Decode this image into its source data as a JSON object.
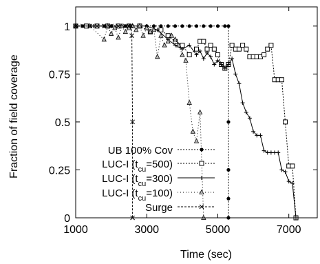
{
  "chart_data": {
    "type": "line",
    "xlabel": "Time (sec)",
    "ylabel": "Fraction of field coverage",
    "xlim": [
      1000,
      7800
    ],
    "ylim": [
      0,
      1.1
    ],
    "x_ticks": [
      1000,
      3000,
      5000,
      7000
    ],
    "y_ticks": [
      0,
      0.25,
      0.5,
      0.75,
      1
    ],
    "x_tick_labels": [
      "1000",
      "3000",
      "5000",
      "7000"
    ],
    "y_tick_labels": [
      "0",
      "0.25",
      "0.5",
      "0.75",
      "1"
    ],
    "legend_position": "center-left, inside plot",
    "series": [
      {
        "name": "UB 100% Cov",
        "color": "#000000",
        "dash": "2,2",
        "marker": "dot",
        "x": [
          1000,
          1200,
          1400,
          1600,
          1800,
          2000,
          2200,
          2400,
          2600,
          2800,
          3000,
          3200,
          3400,
          3600,
          3800,
          4000,
          4200,
          4400,
          4600,
          4800,
          5000,
          5200,
          5300,
          5300,
          5300,
          5300,
          5300
        ],
        "y": [
          1,
          1,
          1,
          1,
          1,
          1,
          1,
          1,
          1,
          1,
          1,
          1,
          1,
          1,
          1,
          1,
          1,
          1,
          1,
          1,
          1,
          1,
          1,
          0.5,
          0.25,
          0.1,
          0
        ]
      },
      {
        "name": "LUC-I (t_cu=500)",
        "color": "#000000",
        "dash": "2,2",
        "marker": "square",
        "x": [
          1000,
          1300,
          1600,
          1900,
          2200,
          2500,
          2800,
          3100,
          3400,
          3600,
          3800,
          4000,
          4200,
          4400,
          4500,
          4600,
          4700,
          4800,
          4900,
          5000,
          5100,
          5200,
          5300,
          5400,
          5500,
          5600,
          5700,
          5800,
          5900,
          6000,
          6100,
          6200,
          6300,
          6400,
          6500,
          6600,
          6700,
          6800,
          6900,
          7000,
          7100,
          7200
        ],
        "y": [
          1,
          1,
          1,
          1,
          1,
          1,
          1,
          0.97,
          0.98,
          0.95,
          0.92,
          0.9,
          0.85,
          0.88,
          0.92,
          0.92,
          0.88,
          0.9,
          0.88,
          0.85,
          0.8,
          0.78,
          0.8,
          0.9,
          0.88,
          0.88,
          0.9,
          0.88,
          0.84,
          0.84,
          0.84,
          0.84,
          0.85,
          0.88,
          0.9,
          0.72,
          0.72,
          0.72,
          0.5,
          0.27,
          0.27,
          0
        ]
      },
      {
        "name": "LUC-I (t_cu=300)",
        "color": "#000000",
        "dash": "",
        "marker": "plus",
        "x": [
          1000,
          1500,
          2000,
          2500,
          3000,
          3300,
          3600,
          3800,
          4000,
          4200,
          4400,
          4500,
          4600,
          4700,
          4800,
          4900,
          5000,
          5100,
          5200,
          5300,
          5400,
          5500,
          5600,
          5700,
          5800,
          5900,
          6000,
          6100,
          6200,
          6300,
          6400,
          6500,
          6600,
          6700,
          6800,
          6900,
          7000,
          7100,
          7200
        ],
        "y": [
          1,
          1,
          1,
          1,
          1,
          0.98,
          0.93,
          0.9,
          0.88,
          0.9,
          0.85,
          0.87,
          0.83,
          0.86,
          0.84,
          0.8,
          0.82,
          0.8,
          0.78,
          0.8,
          0.83,
          0.75,
          0.7,
          0.6,
          0.55,
          0.52,
          0.45,
          0.43,
          0.43,
          0.35,
          0.34,
          0.34,
          0.34,
          0.34,
          0.25,
          0.24,
          0.19,
          0.18,
          0
        ]
      },
      {
        "name": "LUC-I (t_cu=100)",
        "color": "#000000",
        "dash": "1,3",
        "marker": "triangle",
        "x": [
          1000,
          1400,
          1800,
          1900,
          2000,
          2100,
          2200,
          2300,
          2400,
          2500,
          2600,
          2700,
          2800,
          2900,
          3000,
          3100,
          3200,
          3300,
          3400,
          3500,
          3600,
          3700,
          3800,
          3900,
          4000,
          4100,
          4200,
          4300,
          4400,
          4500,
          4600
        ],
        "y": [
          1,
          1,
          0.93,
          1,
          0.96,
          0.99,
          0.94,
          1,
          0.97,
          0.99,
          1,
          0.98,
          1,
          0.95,
          0.99,
          0.97,
          0.98,
          0.84,
          0.95,
          0.9,
          0.92,
          0.95,
          0.93,
          0.9,
          0.85,
          0.82,
          0.6,
          0.45,
          0.4,
          0.55,
          0
        ]
      },
      {
        "name": "Surge",
        "color": "#000000",
        "dash": "3,2",
        "marker": "x",
        "x": [
          1000,
          1200,
          1400,
          1600,
          1800,
          2000,
          2200,
          2400,
          2500,
          2560,
          2580,
          2600,
          2600
        ],
        "y": [
          1,
          1,
          1,
          1,
          1,
          1,
          1,
          1,
          1,
          1,
          0.95,
          0.5,
          0
        ]
      }
    ],
    "legend_labels": [
      {
        "main": "UB 100% Cov"
      },
      {
        "main": "LUC-I (t",
        "sub": "cu",
        "tail": "=500)"
      },
      {
        "main": "LUC-I (t",
        "sub": "cu",
        "tail": "=300)"
      },
      {
        "main": "LUC-I (t",
        "sub": "cu",
        "tail": "=100)"
      },
      {
        "main": "Surge"
      }
    ]
  }
}
